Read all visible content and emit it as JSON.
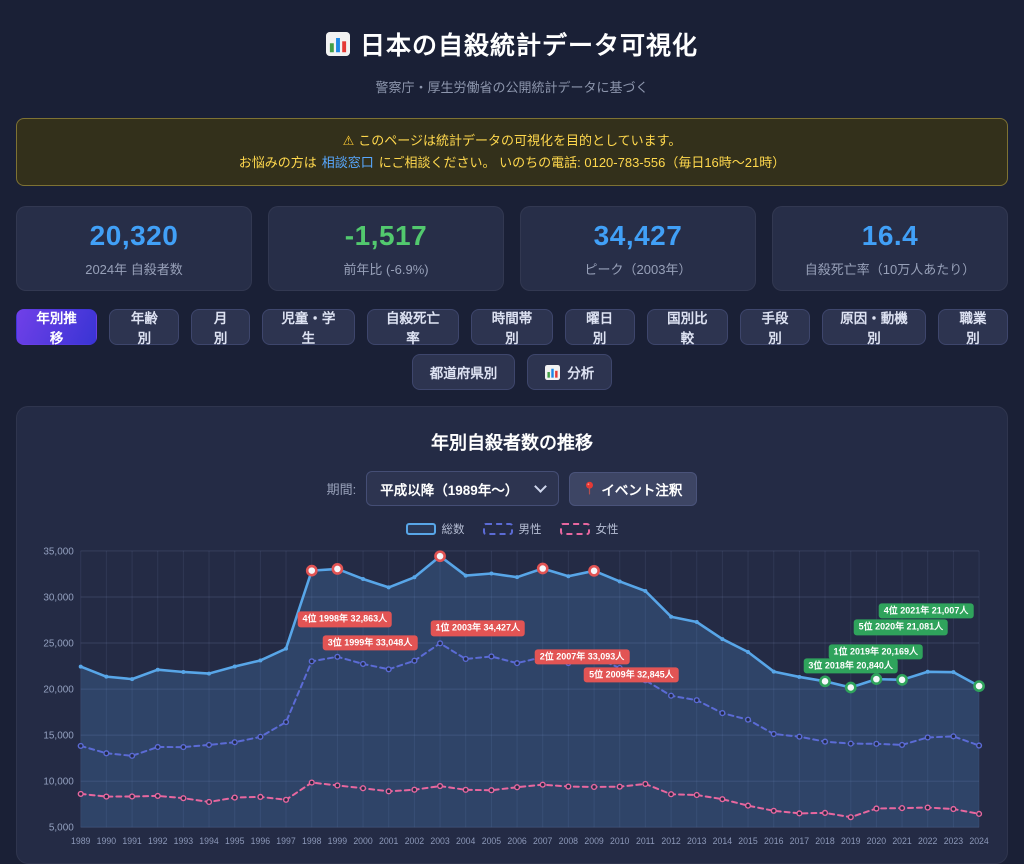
{
  "header": {
    "icon": "bar-chart-icon",
    "title": "日本の自殺統計データ可視化",
    "subtitle": "警察庁・厚生労働省の公開統計データに基づく"
  },
  "notice": {
    "warning_icon": "⚠",
    "line1": "このページは統計データの可視化を目的としています。",
    "line2_prefix": "お悩みの方は",
    "link_label": "相談窓口",
    "line2_suffix": "にご相談ください。 いのちの電話: 0120-783-556（毎日16時〜21時）"
  },
  "stats": [
    {
      "value": "20,320",
      "label": "2024年 自殺者数",
      "color": "#41a0f7"
    },
    {
      "value": "-1,517",
      "label": "前年比 (-6.9%)",
      "color": "#52c96e"
    },
    {
      "value": "34,427",
      "label": "ピーク（2003年）",
      "color": "#41a0f7"
    },
    {
      "value": "16.4",
      "label": "自殺死亡率（10万人あたり）",
      "color": "#41a0f7"
    }
  ],
  "tabs": {
    "row1": [
      {
        "label": "年別推移",
        "active": true
      },
      {
        "label": "年齢別"
      },
      {
        "label": "月別"
      },
      {
        "label": "児童・学生"
      },
      {
        "label": "自殺死亡率"
      },
      {
        "label": "時間帯別"
      },
      {
        "label": "曜日別"
      },
      {
        "label": "国別比較"
      },
      {
        "label": "手段別"
      },
      {
        "label": "原因・動機別"
      },
      {
        "label": "職業別"
      }
    ],
    "row2": [
      {
        "label": "都道府県別"
      },
      {
        "label": "分析",
        "icon": "bar-chart-icon"
      }
    ]
  },
  "chart_panel": {
    "title": "年別自殺者数の推移",
    "period_label": "期間:",
    "period_value": "平成以降（1989年〜）",
    "chevron_icon": "chevron-down-icon",
    "pin_icon": "pushpin-icon",
    "event_button_label": "イベント注釈"
  },
  "chart_data": {
    "type": "line",
    "title": "年別自殺者数の推移",
    "xlabel": "",
    "ylabel": "",
    "grid": true,
    "legend_position": "top",
    "ylim": [
      5000,
      35000
    ],
    "yticks": [
      5000,
      10000,
      15000,
      20000,
      25000,
      30000,
      35000
    ],
    "ytick_labels": [
      "5,000",
      "10,000",
      "15,000",
      "20,000",
      "25,000",
      "30,000",
      "35,000"
    ],
    "x": [
      1989,
      1990,
      1991,
      1992,
      1993,
      1994,
      1995,
      1996,
      1997,
      1998,
      1999,
      2000,
      2001,
      2002,
      2003,
      2004,
      2005,
      2006,
      2007,
      2008,
      2009,
      2010,
      2011,
      2012,
      2013,
      2014,
      2015,
      2016,
      2017,
      2018,
      2019,
      2020,
      2021,
      2022,
      2023,
      2024
    ],
    "series": [
      {
        "name": "総数",
        "color": "#58a6e8",
        "style": "solid",
        "width": 2.6,
        "marker": "dot",
        "area": true,
        "values": [
          22436,
          21346,
          21084,
          22104,
          21851,
          21679,
          22445,
          23104,
          24391,
          32863,
          33048,
          31957,
          31042,
          32143,
          34427,
          32325,
          32552,
          32155,
          33093,
          32249,
          32845,
          31690,
          30651,
          27858,
          27283,
          25427,
          24025,
          21897,
          21321,
          20840,
          20169,
          21081,
          21007,
          21881,
          21837,
          20320
        ]
      },
      {
        "name": "男性",
        "color": "#5b6bd5",
        "style": "dashed",
        "width": 2,
        "marker": "hollow",
        "area": false,
        "values": [
          13822,
          13026,
          12745,
          13710,
          13698,
          13939,
          14231,
          14813,
          16416,
          23013,
          23512,
          22727,
          22144,
          23080,
          24963,
          23272,
          23540,
          22813,
          23478,
          22831,
          23472,
          22283,
          20955,
          19273,
          18787,
          17386,
          16681,
          15121,
          14826,
          14290,
          14078,
          14055,
          13939,
          14746,
          14862,
          13869
        ]
      },
      {
        "name": "女性",
        "color": "#e8679f",
        "style": "dashed",
        "width": 2,
        "marker": "hollow",
        "area": false,
        "values": [
          8614,
          8320,
          8339,
          8394,
          8153,
          7740,
          8214,
          8291,
          7975,
          9850,
          9536,
          9230,
          8898,
          9063,
          9464,
          9053,
          9012,
          9342,
          9615,
          9418,
          9373,
          9407,
          9696,
          8585,
          8496,
          8041,
          7344,
          6776,
          6495,
          6550,
          6091,
          7026,
          7068,
          7135,
          6975,
          6451
        ]
      }
    ],
    "highlights": [
      {
        "year": 1998,
        "color": "#e25454"
      },
      {
        "year": 1999,
        "color": "#e25454"
      },
      {
        "year": 2003,
        "color": "#e25454"
      },
      {
        "year": 2007,
        "color": "#e25454"
      },
      {
        "year": 2009,
        "color": "#e25454"
      },
      {
        "year": 2018,
        "color": "#2fa35c"
      },
      {
        "year": 2019,
        "color": "#2fa35c"
      },
      {
        "year": 2020,
        "color": "#2fa35c"
      },
      {
        "year": 2021,
        "color": "#2fa35c"
      },
      {
        "year": 2024,
        "color": "#2fa35c"
      }
    ],
    "annotations": [
      {
        "type": "red",
        "text": "4位 1998年 32,863人",
        "fx": 0.294,
        "fy": 0.247
      },
      {
        "type": "red",
        "text": "3位 1999年 33,048人",
        "fx": 0.322,
        "fy": 0.333
      },
      {
        "type": "red",
        "text": "1位 2003年 34,427人",
        "fx": 0.442,
        "fy": 0.28
      },
      {
        "type": "red",
        "text": "2位 2007年 33,093人",
        "fx": 0.558,
        "fy": 0.384
      },
      {
        "type": "red",
        "text": "5位 2009年 32,845人",
        "fx": 0.613,
        "fy": 0.448
      },
      {
        "type": "green",
        "text": "4位 2021年 21,007人",
        "fx": 0.941,
        "fy": 0.215
      },
      {
        "type": "green",
        "text": "5位 2020年 21,081人",
        "fx": 0.913,
        "fy": 0.276
      },
      {
        "type": "green",
        "text": "1位 2019年 20,169人",
        "fx": 0.885,
        "fy": 0.366
      },
      {
        "type": "green",
        "text": "3位 2018年 20,840人",
        "fx": 0.857,
        "fy": 0.416
      }
    ]
  }
}
